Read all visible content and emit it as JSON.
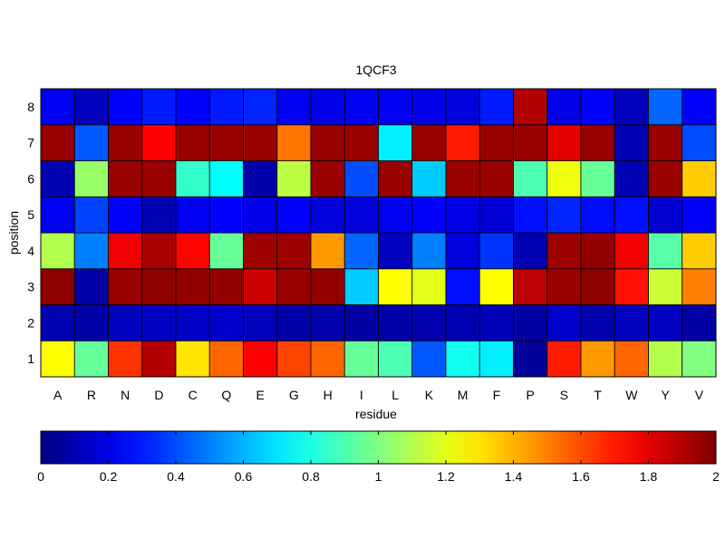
{
  "chart_data": {
    "type": "heatmap",
    "title": "1QCF3",
    "xlabel": "residue",
    "ylabel": "position",
    "x_categories": [
      "A",
      "R",
      "N",
      "D",
      "C",
      "Q",
      "E",
      "G",
      "H",
      "I",
      "L",
      "K",
      "M",
      "F",
      "P",
      "S",
      "T",
      "W",
      "Y",
      "V"
    ],
    "y_categories": [
      "1",
      "2",
      "3",
      "4",
      "5",
      "6",
      "7",
      "8"
    ],
    "y_order": "1 at bottom, 8 at top",
    "colormap": "jet",
    "clim": [
      0,
      2
    ],
    "colorbar": {
      "orientation": "horizontal",
      "placement": "bottom",
      "ticks": [
        0,
        0.2,
        0.4,
        0.6,
        0.8,
        1,
        1.2,
        1.4,
        1.6,
        1.8,
        2
      ],
      "tick_labels": [
        "0",
        "0.2",
        "0.4",
        "0.6",
        "0.8",
        "1",
        "1.2",
        "1.4",
        "1.6",
        "1.8",
        "2"
      ]
    },
    "values": [
      [
        1.25,
        0.95,
        1.65,
        1.9,
        1.3,
        1.55,
        1.75,
        1.62,
        1.55,
        0.95,
        0.9,
        0.42,
        0.78,
        0.72,
        0.05,
        1.7,
        1.45,
        1.55,
        1.1,
        1.0
      ],
      [
        0.1,
        0.08,
        0.12,
        0.13,
        0.14,
        0.15,
        0.12,
        0.08,
        0.09,
        0.07,
        0.08,
        0.09,
        0.1,
        0.11,
        0.07,
        0.15,
        0.09,
        0.12,
        0.13,
        0.07
      ],
      [
        1.97,
        0.08,
        1.95,
        1.97,
        1.96,
        1.96,
        1.85,
        1.95,
        1.96,
        0.65,
        1.25,
        1.2,
        0.28,
        1.25,
        1.88,
        1.95,
        1.97,
        1.72,
        1.15,
        1.5
      ],
      [
        1.1,
        0.5,
        1.78,
        1.92,
        1.74,
        0.95,
        1.94,
        1.94,
        1.45,
        0.45,
        0.12,
        0.5,
        0.18,
        0.35,
        0.1,
        1.94,
        1.96,
        1.77,
        0.92,
        1.35
      ],
      [
        0.22,
        0.38,
        0.25,
        0.1,
        0.22,
        0.25,
        0.2,
        0.25,
        0.18,
        0.18,
        0.22,
        0.24,
        0.2,
        0.17,
        0.28,
        0.32,
        0.27,
        0.28,
        0.16,
        0.25
      ],
      [
        0.1,
        1.05,
        1.95,
        1.95,
        0.85,
        0.75,
        0.08,
        1.12,
        1.95,
        0.4,
        1.95,
        0.65,
        1.95,
        1.95,
        0.9,
        1.22,
        0.95,
        0.1,
        1.95,
        1.35
      ],
      [
        1.95,
        0.42,
        1.95,
        1.75,
        1.95,
        1.95,
        1.95,
        1.52,
        1.95,
        1.95,
        0.72,
        1.95,
        1.7,
        1.95,
        1.95,
        1.8,
        1.95,
        0.1,
        1.95,
        0.4
      ],
      [
        0.22,
        0.12,
        0.25,
        0.3,
        0.25,
        0.3,
        0.32,
        0.22,
        0.2,
        0.22,
        0.22,
        0.2,
        0.18,
        0.3,
        1.9,
        0.2,
        0.25,
        0.12,
        0.45,
        0.25
      ]
    ]
  }
}
